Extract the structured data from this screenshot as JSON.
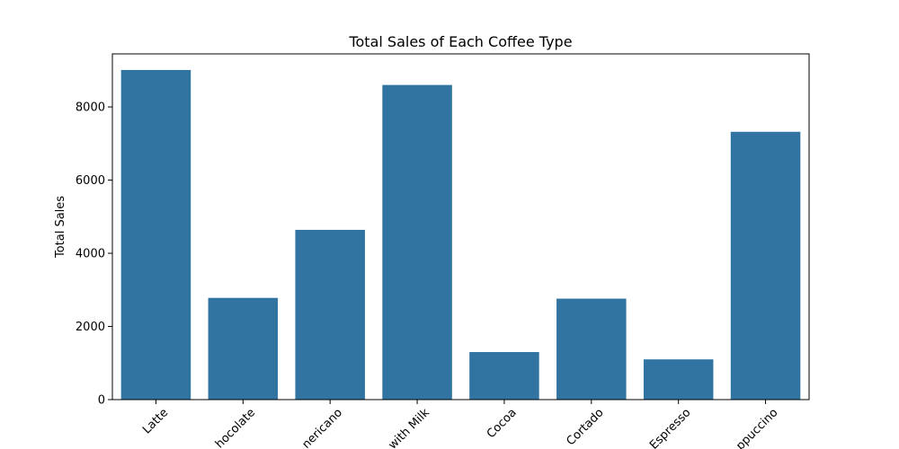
{
  "chart_data": {
    "type": "bar",
    "title": "Total Sales of Each Coffee Type",
    "xlabel": "",
    "ylabel": "Total Sales",
    "categories": [
      "Latte",
      "Hot Chocolate",
      "Americano",
      "Americano with Milk",
      "Cocoa",
      "Cortado",
      "Espresso",
      "Cappuccino"
    ],
    "tick_labels_visible": [
      "Latte",
      "hocolate",
      "nericano",
      "with Milk",
      "Cocoa",
      "Cortado",
      "Espresso",
      "ppuccino"
    ],
    "values": [
      9010,
      2780,
      4640,
      8600,
      1300,
      2760,
      1100,
      7320
    ],
    "ylim": [
      0,
      9450
    ],
    "yticks": [
      0,
      2000,
      4000,
      6000,
      8000
    ],
    "bar_color": "#3274a1",
    "grid": false,
    "legend": false
  }
}
